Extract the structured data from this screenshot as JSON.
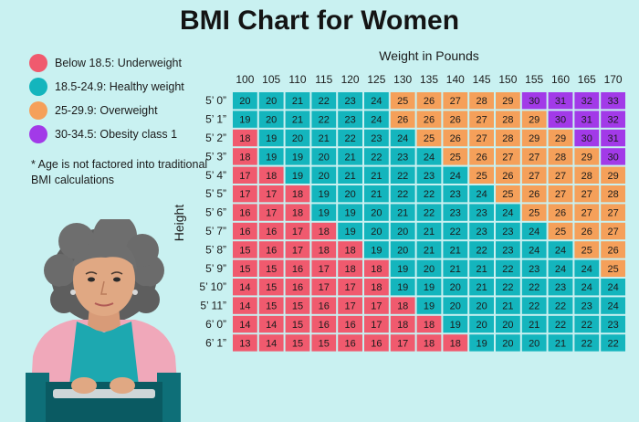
{
  "title": "BMI Chart for Women",
  "legend": [
    {
      "label": "Below 18.5: Underweight",
      "color": "#f05a6e"
    },
    {
      "label": "18.5-24.9: Healthy weight",
      "color": "#14b5bd"
    },
    {
      "label": "25-29.9: Overweight",
      "color": "#f5a05a"
    },
    {
      "label": "30-34.5: Obesity class 1",
      "color": "#a23ae8"
    }
  ],
  "note": "* Age is not factored into traditional BMI calculations",
  "chart_data": {
    "type": "heatmap",
    "title": "BMI Chart for Women",
    "xlabel": "Weight in Pounds",
    "ylabel": "Height",
    "x": [
      "100",
      "105",
      "110",
      "115",
      "120",
      "125",
      "130",
      "135",
      "140",
      "145",
      "150",
      "155",
      "160",
      "165",
      "170"
    ],
    "y": [
      "5’ 0”",
      "5’ 1”",
      "5’ 2”",
      "5’ 3”",
      "5’ 4”",
      "5’ 5”",
      "5’ 6”",
      "5’ 7”",
      "5’ 8”",
      "5’ 9”",
      "5’ 10”",
      "5’ 11”",
      "6’ 0”",
      "6’ 1”"
    ],
    "values": [
      [
        20,
        20,
        21,
        22,
        23,
        24,
        25,
        26,
        27,
        28,
        29,
        30,
        31,
        32,
        33
      ],
      [
        19,
        20,
        21,
        22,
        23,
        24,
        26,
        26,
        26,
        27,
        28,
        29,
        30,
        31,
        32
      ],
      [
        18,
        19,
        20,
        21,
        22,
        23,
        24,
        25,
        26,
        27,
        28,
        29,
        29,
        30,
        31
      ],
      [
        18,
        19,
        19,
        20,
        21,
        22,
        23,
        24,
        25,
        26,
        27,
        27,
        28,
        29,
        30
      ],
      [
        17,
        18,
        19,
        20,
        21,
        21,
        22,
        23,
        24,
        25,
        26,
        27,
        27,
        28,
        29
      ],
      [
        17,
        17,
        18,
        19,
        20,
        21,
        22,
        22,
        23,
        24,
        25,
        26,
        27,
        27,
        28
      ],
      [
        16,
        17,
        18,
        19,
        19,
        20,
        21,
        22,
        23,
        23,
        24,
        25,
        26,
        27,
        27
      ],
      [
        16,
        16,
        17,
        18,
        19,
        20,
        20,
        21,
        22,
        23,
        23,
        24,
        25,
        26,
        27
      ],
      [
        15,
        16,
        17,
        18,
        18,
        19,
        20,
        21,
        21,
        22,
        23,
        24,
        24,
        25,
        26
      ],
      [
        15,
        15,
        16,
        17,
        18,
        18,
        19,
        20,
        21,
        21,
        22,
        23,
        24,
        24,
        25
      ],
      [
        14,
        15,
        16,
        17,
        17,
        18,
        19,
        19,
        20,
        21,
        22,
        22,
        23,
        24,
        24
      ],
      [
        14,
        15,
        15,
        16,
        17,
        17,
        18,
        19,
        20,
        20,
        21,
        22,
        22,
        23,
        24
      ],
      [
        14,
        14,
        15,
        16,
        16,
        17,
        18,
        18,
        19,
        20,
        20,
        21,
        22,
        22,
        23
      ],
      [
        13,
        14,
        15,
        15,
        16,
        16,
        17,
        18,
        18,
        19,
        20,
        20,
        21,
        22,
        22
      ]
    ]
  }
}
